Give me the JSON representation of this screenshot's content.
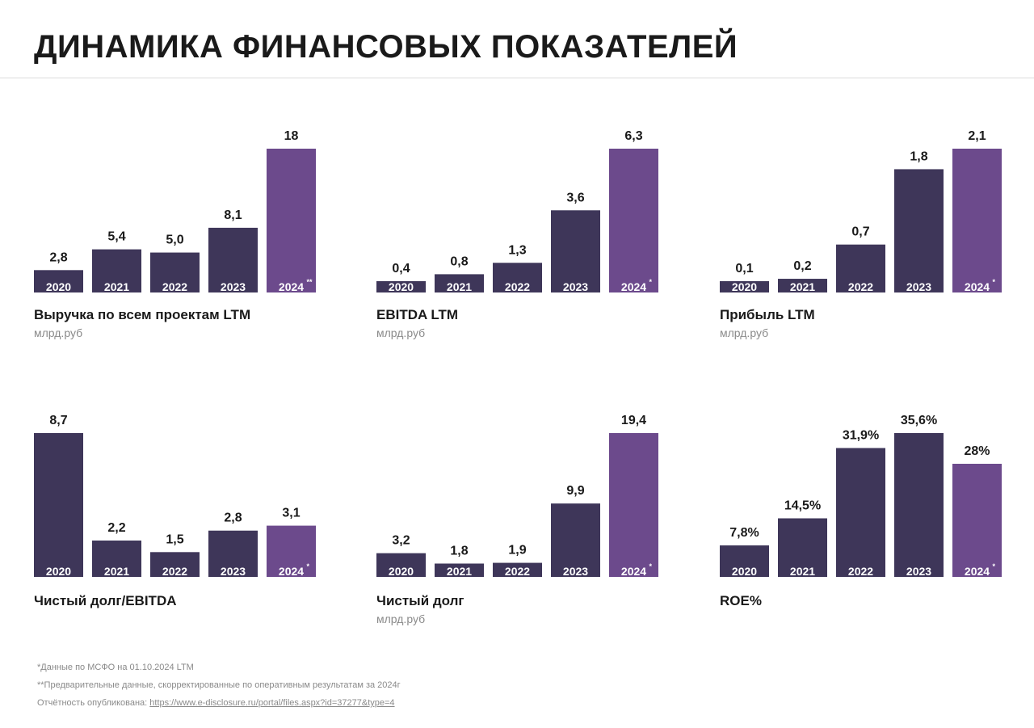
{
  "page_title": "ДИНАМИКА ФИНАНСОВЫХ ПОКАЗАТЕЛЕЙ",
  "colors": {
    "dark_bar": "#3e3659",
    "accent_bar": "#6c4a8c",
    "text": "#1a1a1a",
    "muted": "#8a8a8a"
  },
  "chart_data": [
    {
      "type": "bar",
      "title": "Выручка по всем проектам LTM",
      "unit": "млрд.руб",
      "categories": [
        "2020",
        "2021",
        "2022",
        "2023",
        "2024"
      ],
      "category_marks": [
        "",
        "",
        "",
        "",
        "**"
      ],
      "values": [
        2.8,
        5.4,
        5.0,
        8.1,
        18
      ],
      "value_labels": [
        "2,8",
        "5,4",
        "5,0",
        "8,1",
        "18"
      ],
      "highlight_last": true
    },
    {
      "type": "bar",
      "title": "EBITDA LTM",
      "unit": "млрд.руб",
      "categories": [
        "2020",
        "2021",
        "2022",
        "2023",
        "2024"
      ],
      "category_marks": [
        "",
        "",
        "",
        "",
        "*"
      ],
      "values": [
        0.4,
        0.8,
        1.3,
        3.6,
        6.3
      ],
      "value_labels": [
        "0,4",
        "0,8",
        "1,3",
        "3,6",
        "6,3"
      ],
      "highlight_last": true
    },
    {
      "type": "bar",
      "title": "Прибыль LTM",
      "unit": "млрд.руб",
      "categories": [
        "2020",
        "2021",
        "2022",
        "2023",
        "2024"
      ],
      "category_marks": [
        "",
        "",
        "",
        "",
        "*"
      ],
      "values": [
        0.1,
        0.2,
        0.7,
        1.8,
        2.1
      ],
      "value_labels": [
        "0,1",
        "0,2",
        "0,7",
        "1,8",
        "2,1"
      ],
      "highlight_last": true
    },
    {
      "type": "bar",
      "title": "Чистый долг/EBITDA",
      "unit": "",
      "categories": [
        "2020",
        "2021",
        "2022",
        "2023",
        "2024"
      ],
      "category_marks": [
        "",
        "",
        "",
        "",
        "*"
      ],
      "values": [
        8.7,
        2.2,
        1.5,
        2.8,
        3.1
      ],
      "value_labels": [
        "8,7",
        "2,2",
        "1,5",
        "2,8",
        "3,1"
      ],
      "highlight_last": true
    },
    {
      "type": "bar",
      "title": "Чистый долг",
      "unit": "млрд.руб",
      "categories": [
        "2020",
        "2021",
        "2022",
        "2023",
        "2024"
      ],
      "category_marks": [
        "",
        "",
        "",
        "",
        "*"
      ],
      "values": [
        3.2,
        1.8,
        1.9,
        9.9,
        19.4
      ],
      "value_labels": [
        "3,2",
        "1,8",
        "1,9",
        "9,9",
        "19,4"
      ],
      "highlight_last": true
    },
    {
      "type": "bar",
      "title": "ROE%",
      "unit": "",
      "categories": [
        "2020",
        "2021",
        "2022",
        "2023",
        "2024"
      ],
      "category_marks": [
        "",
        "",
        "",
        "",
        "*"
      ],
      "values": [
        7.8,
        14.5,
        31.9,
        35.6,
        28
      ],
      "value_labels": [
        "7,8%",
        "14,5%",
        "31,9%",
        "35,6%",
        "28%"
      ],
      "highlight_last": true
    }
  ],
  "footnotes": {
    "note1": "*Данные по МСФО на 01.10.2024 LTM",
    "note2": "**Предварительные данные, скорректированные по оперативным результатам за 2024г",
    "note3_prefix": "Отчётность опубликована: ",
    "note3_link": "https://www.e-disclosure.ru/portal/files.aspx?id=37277&type=4"
  }
}
